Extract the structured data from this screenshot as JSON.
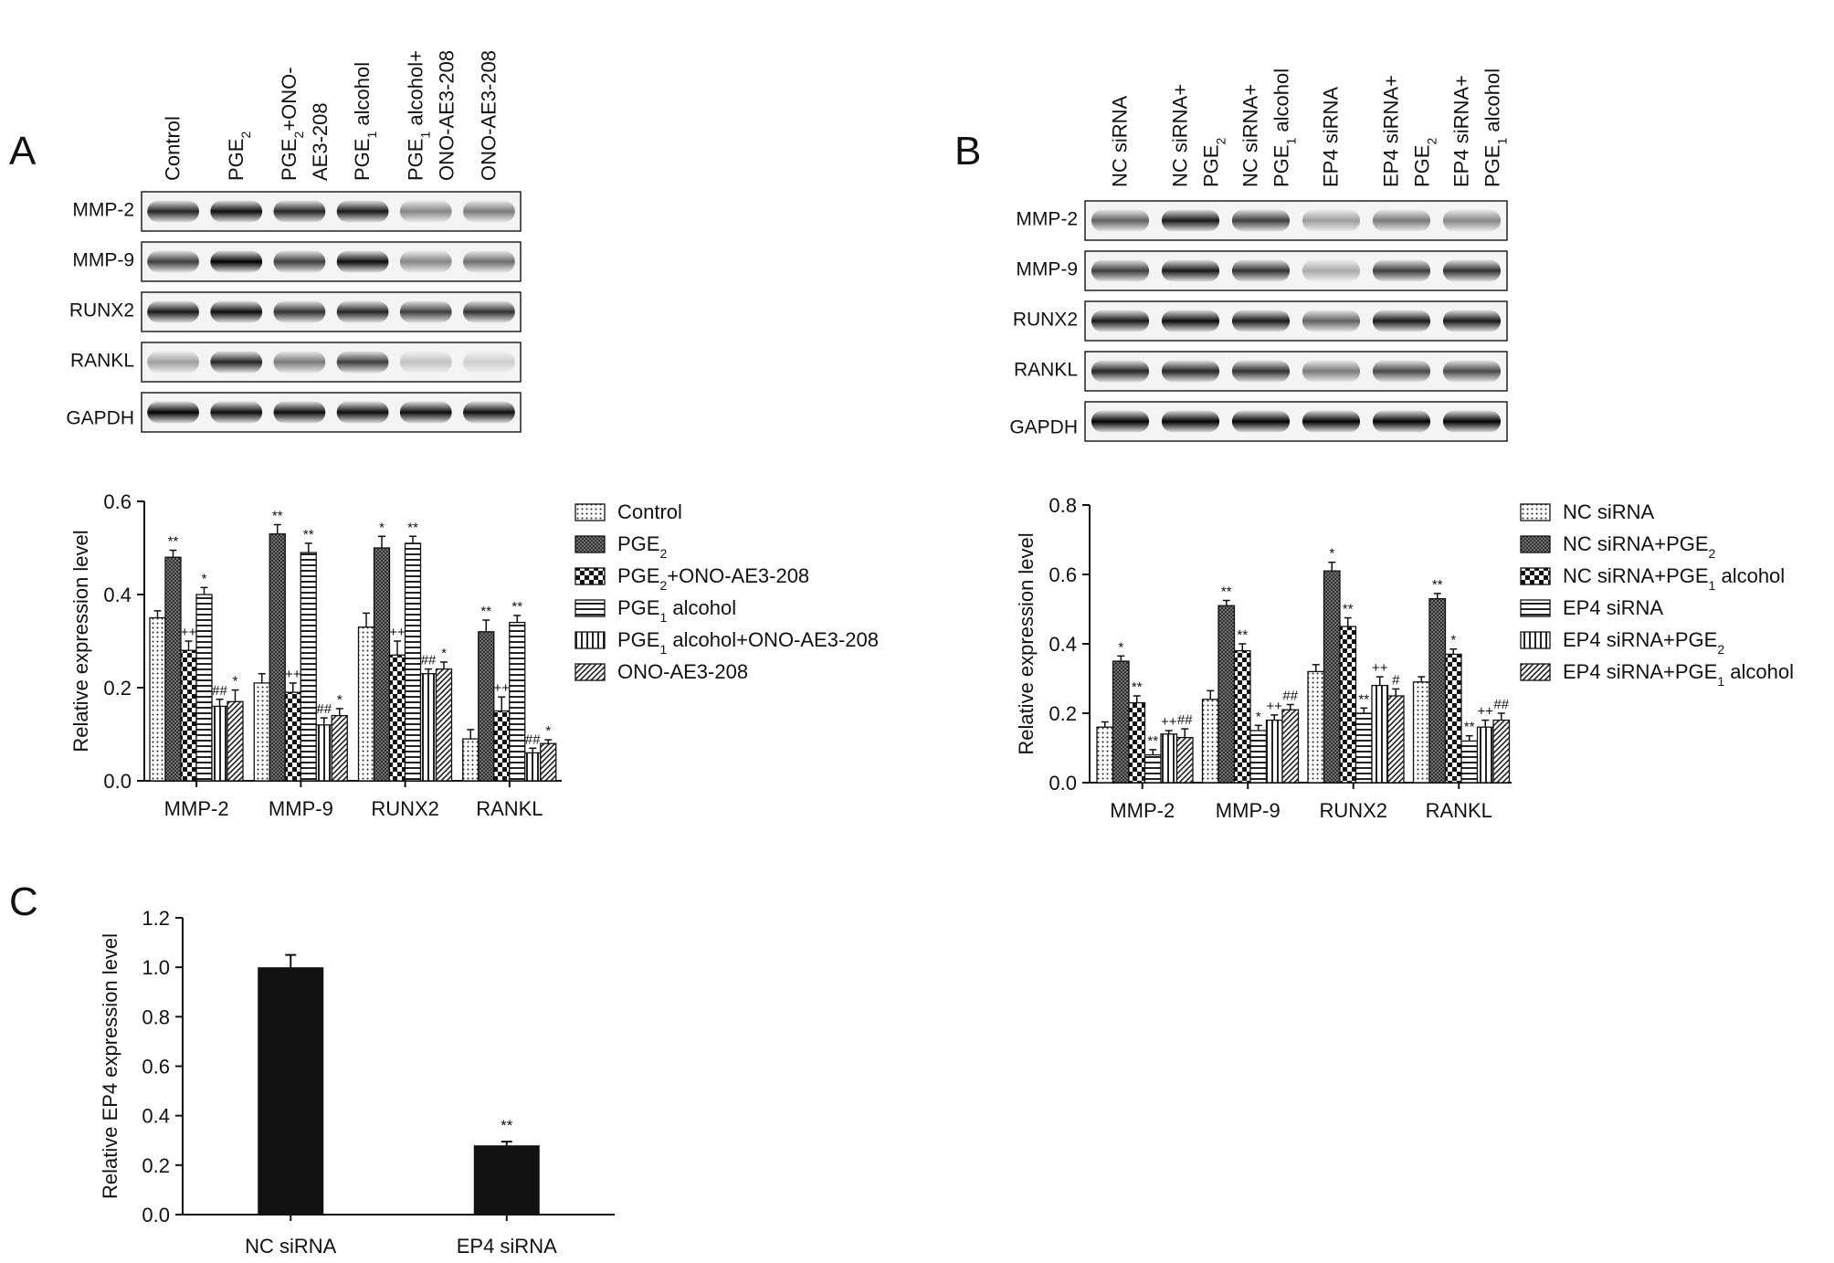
{
  "panels": {
    "a": {
      "letter": "A",
      "lanes": [
        {
          "main": "Control",
          "sub": "",
          "line2": "",
          "line2sub": "",
          "line2tail": ""
        },
        {
          "main": "PGE",
          "sub": "2",
          "tail": "",
          "line2": "",
          "line2sub": "",
          "line2tail": ""
        },
        {
          "main": "PGE",
          "sub": "2",
          "tail": "+ONO-",
          "line2": "AE3-208",
          "line2sub": "",
          "line2tail": ""
        },
        {
          "main": "PGE",
          "sub": "1",
          "tail": " alcohol",
          "line2": "",
          "line2sub": "",
          "line2tail": ""
        },
        {
          "main": "PGE",
          "sub": "1",
          "tail": " alcohol+",
          "line2": "ONO-AE3-208",
          "line2sub": "",
          "line2tail": ""
        },
        {
          "main": "ONO-AE3-208",
          "sub": "",
          "tail": "",
          "line2": "",
          "line2sub": "",
          "line2tail": ""
        }
      ],
      "blot_labels": [
        "MMP-2",
        "MMP-9",
        "RUNX2",
        "RANKL",
        "GAPDH"
      ],
      "band_intensity": [
        [
          0.85,
          0.95,
          0.85,
          0.9,
          0.45,
          0.5
        ],
        [
          0.75,
          1.0,
          0.75,
          0.95,
          0.45,
          0.55
        ],
        [
          0.9,
          0.95,
          0.8,
          0.85,
          0.75,
          0.8
        ],
        [
          0.35,
          0.85,
          0.5,
          0.75,
          0.2,
          0.15
        ],
        [
          1.0,
          0.95,
          0.95,
          0.95,
          0.95,
          0.95
        ]
      ]
    },
    "b": {
      "letter": "B",
      "lanes": [
        {
          "main": "NC siRNA",
          "sub": "",
          "tail": "",
          "line2": "",
          "line2sub": "",
          "line2tail": ""
        },
        {
          "main": "NC siRNA+",
          "sub": "",
          "tail": "",
          "line2": "PGE",
          "line2sub": "2",
          "line2tail": ""
        },
        {
          "main": "NC siRNA+",
          "sub": "",
          "tail": "",
          "line2": "PGE",
          "line2sub": "1",
          "line2tail": " alcohol"
        },
        {
          "main": "EP4 siRNA",
          "sub": "",
          "tail": "",
          "line2": "",
          "line2sub": "",
          "line2tail": ""
        },
        {
          "main": "EP4 siRNA+",
          "sub": "",
          "tail": "",
          "line2": "PGE",
          "line2sub": "2",
          "line2tail": ""
        },
        {
          "main": "EP4 siRNA+",
          "sub": "",
          "tail": "",
          "line2": "PGE",
          "line2sub": "1",
          "line2tail": " alcohol"
        }
      ],
      "blot_labels": [
        "MMP-2",
        "MMP-9",
        "RUNX2",
        "RANKL",
        "GAPDH"
      ],
      "band_intensity": [
        [
          0.6,
          0.9,
          0.75,
          0.35,
          0.5,
          0.45
        ],
        [
          0.75,
          0.9,
          0.8,
          0.3,
          0.75,
          0.8
        ],
        [
          0.9,
          0.95,
          0.9,
          0.6,
          0.9,
          0.9
        ],
        [
          0.85,
          0.85,
          0.8,
          0.5,
          0.7,
          0.7
        ],
        [
          1.0,
          1.0,
          1.0,
          1.0,
          1.0,
          1.0
        ]
      ]
    },
    "c": {
      "letter": "C"
    }
  },
  "chart_data": [
    {
      "type": "bar",
      "panel": "A",
      "categories": [
        "MMP-2",
        "MMP-9",
        "RUNX2",
        "RANKL"
      ],
      "ylabel": "Relative expression level",
      "ylim": [
        0,
        0.6
      ],
      "yticks": [
        "0.0",
        "0.2",
        "0.4",
        "0.6"
      ],
      "legend_position": "right",
      "series": [
        {
          "name": "Control",
          "name_parts": [
            "Control",
            "",
            ""
          ],
          "pattern": "dots",
          "values": [
            0.35,
            0.21,
            0.33,
            0.09
          ],
          "errors": [
            0.015,
            0.02,
            0.03,
            0.02
          ],
          "marks": [
            "",
            "",
            "",
            ""
          ]
        },
        {
          "name": "PGE2",
          "name_parts": [
            "PGE",
            "2",
            ""
          ],
          "pattern": "crosshatch",
          "values": [
            0.48,
            0.53,
            0.5,
            0.32
          ],
          "errors": [
            0.015,
            0.02,
            0.025,
            0.025
          ],
          "marks": [
            "**",
            "**",
            "*",
            "**"
          ]
        },
        {
          "name": "PGE2+ONO-AE3-208",
          "name_parts": [
            "PGE",
            "2",
            "+ONO-AE3-208"
          ],
          "pattern": "checker",
          "values": [
            0.28,
            0.19,
            0.27,
            0.15
          ],
          "errors": [
            0.02,
            0.02,
            0.03,
            0.03
          ],
          "marks": [
            "++",
            "++",
            "++",
            "++"
          ]
        },
        {
          "name": "PGE1 alcohol",
          "name_parts": [
            "PGE",
            "1",
            " alcohol"
          ],
          "pattern": "hlines",
          "values": [
            0.4,
            0.49,
            0.51,
            0.34
          ],
          "errors": [
            0.015,
            0.02,
            0.015,
            0.015
          ],
          "marks": [
            "*",
            "**",
            "**",
            "**"
          ]
        },
        {
          "name": "PGE1 alcohol+ONO-AE3-208",
          "name_parts": [
            "PGE",
            "1",
            " alcohol+ONO-AE3-208"
          ],
          "pattern": "vlines",
          "values": [
            0.16,
            0.12,
            0.23,
            0.06
          ],
          "errors": [
            0.015,
            0.015,
            0.01,
            0.01
          ],
          "marks": [
            "##",
            "##",
            "##",
            "##"
          ]
        },
        {
          "name": "ONO-AE3-208",
          "name_parts": [
            "ONO-AE3-208",
            "",
            ""
          ],
          "pattern": "diag",
          "values": [
            0.17,
            0.14,
            0.24,
            0.08
          ],
          "errors": [
            0.025,
            0.015,
            0.015,
            0.008
          ],
          "marks": [
            "*",
            "*",
            "*",
            "*"
          ]
        }
      ]
    },
    {
      "type": "bar",
      "panel": "B",
      "categories": [
        "MMP-2",
        "MMP-9",
        "RUNX2",
        "RANKL"
      ],
      "ylabel": "Relative expression level",
      "ylim": [
        0,
        0.8
      ],
      "yticks": [
        "0.0",
        "0.2",
        "0.4",
        "0.6",
        "0.8"
      ],
      "legend_position": "right",
      "series": [
        {
          "name": "NC siRNA",
          "name_parts": [
            "NC siRNA",
            "",
            ""
          ],
          "pattern": "dots",
          "values": [
            0.16,
            0.24,
            0.32,
            0.29
          ],
          "errors": [
            0.015,
            0.025,
            0.02,
            0.015
          ],
          "marks": [
            "",
            "",
            "",
            ""
          ]
        },
        {
          "name": "NC siRNA+PGE2",
          "name_parts": [
            "NC siRNA+PGE",
            "2",
            ""
          ],
          "pattern": "crosshatch",
          "values": [
            0.35,
            0.51,
            0.61,
            0.53
          ],
          "errors": [
            0.015,
            0.015,
            0.025,
            0.015
          ],
          "marks": [
            "*",
            "**",
            "*",
            "**"
          ]
        },
        {
          "name": "NC siRNA+PGE1 alcohol",
          "name_parts": [
            "NC siRNA+PGE",
            "1",
            " alcohol"
          ],
          "pattern": "checker",
          "values": [
            0.23,
            0.38,
            0.45,
            0.37
          ],
          "errors": [
            0.02,
            0.02,
            0.025,
            0.015
          ],
          "marks": [
            "**",
            "**",
            "**",
            "*"
          ]
        },
        {
          "name": "EP4 siRNA",
          "name_parts": [
            "EP4 siRNA",
            "",
            ""
          ],
          "pattern": "hlines",
          "values": [
            0.08,
            0.15,
            0.2,
            0.12
          ],
          "errors": [
            0.015,
            0.015,
            0.015,
            0.015
          ],
          "marks": [
            "**",
            "*",
            "**",
            "**"
          ]
        },
        {
          "name": "EP4 siRNA+PGE2",
          "name_parts": [
            "EP4 siRNA+PGE",
            "2",
            ""
          ],
          "pattern": "vlines",
          "values": [
            0.14,
            0.18,
            0.28,
            0.16
          ],
          "errors": [
            0.01,
            0.015,
            0.025,
            0.02
          ],
          "marks": [
            "++",
            "++",
            "++",
            "++"
          ]
        },
        {
          "name": "EP4 siRNA+PGE1 alcohol",
          "name_parts": [
            "EP4 siRNA+PGE",
            "1",
            " alcohol"
          ],
          "pattern": "diag",
          "values": [
            0.13,
            0.21,
            0.25,
            0.18
          ],
          "errors": [
            0.025,
            0.015,
            0.02,
            0.02
          ],
          "marks": [
            "##",
            "##",
            "#",
            "##"
          ]
        }
      ]
    },
    {
      "type": "bar",
      "panel": "C",
      "categories": [
        "NC siRNA",
        "EP4 siRNA"
      ],
      "values": [
        1.0,
        0.28
      ],
      "errors": [
        0.05,
        0.015
      ],
      "marks": [
        "",
        "**"
      ],
      "ylabel": "Relative EP4 expression level",
      "ylim": [
        0,
        1.2
      ],
      "yticks": [
        "0.0",
        "0.2",
        "0.4",
        "0.6",
        "0.8",
        "1.0",
        "1.2"
      ],
      "color": "#111111"
    }
  ]
}
